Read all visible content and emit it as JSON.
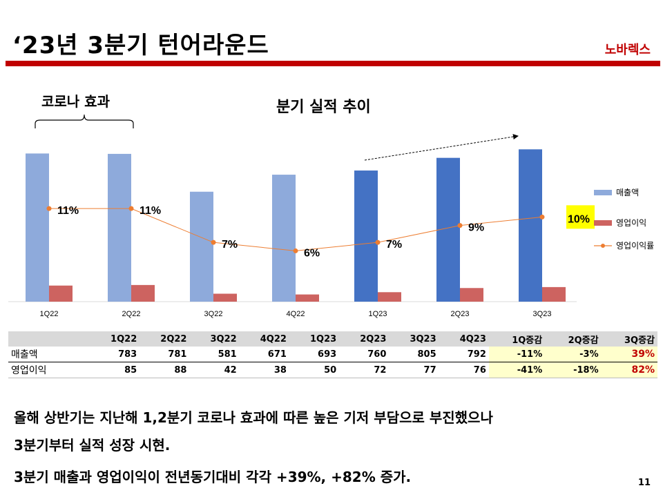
{
  "header": {
    "title": "‘23년 3분기 턴어라운드",
    "brand": "노바렉스"
  },
  "annotation": {
    "covid_label": "코로나 효과"
  },
  "chart_data": {
    "type": "bar",
    "title": "분기 실적 추이",
    "categories": [
      "1Q22",
      "2Q22",
      "3Q22",
      "4Q22",
      "1Q23",
      "2Q23",
      "3Q23"
    ],
    "series": [
      {
        "name": "매출액",
        "type": "bar",
        "values": [
          783,
          781,
          581,
          671,
          693,
          760,
          805
        ],
        "colors": [
          "#8eaadb",
          "#8eaadb",
          "#8eaadb",
          "#8eaadb",
          "#4472c4",
          "#4472c4",
          "#4472c4"
        ]
      },
      {
        "name": "영업이익",
        "type": "bar",
        "values": [
          85,
          88,
          42,
          38,
          50,
          72,
          77
        ],
        "color": "#cd6360"
      },
      {
        "name": "영업이익률",
        "type": "line",
        "values": [
          11,
          11,
          7,
          6,
          7,
          9,
          10
        ],
        "labels": [
          "11%",
          "11%",
          "7%",
          "6%",
          "7%",
          "9%",
          "10%"
        ],
        "color": "#ed7d31",
        "highlight_index": 6,
        "highlight_color": "#ffff00"
      }
    ],
    "ylim": [
      0,
      850
    ],
    "margin_ylim": [
      0,
      19
    ],
    "legend": "right"
  },
  "table": {
    "headers": [
      "",
      "1Q22",
      "2Q22",
      "3Q22",
      "4Q22",
      "1Q23",
      "2Q23",
      "3Q23",
      "4Q23",
      "1Q증감",
      "2Q증감",
      "3Q증감"
    ],
    "rows": [
      {
        "label": "매출액",
        "values": [
          "783",
          "781",
          "581",
          "671",
          "693",
          "760",
          "805",
          "792",
          "-11%",
          "-3%",
          "39%"
        ]
      },
      {
        "label": "영업이익",
        "values": [
          "85",
          "88",
          "42",
          "38",
          "50",
          "72",
          "77",
          "76",
          "-41%",
          "-18%",
          "82%"
        ]
      }
    ]
  },
  "notes": [
    "올해 상반기는 지난해 1,2분기 코로나 효과에 따른 높은 기저 부담으로 부진했으나",
    "3분기부터 실적 성장 시현.",
    "3분기 매출과 영업이익이 전년동기대비 각각 +39%, +82% 증가."
  ],
  "page_number": "11"
}
